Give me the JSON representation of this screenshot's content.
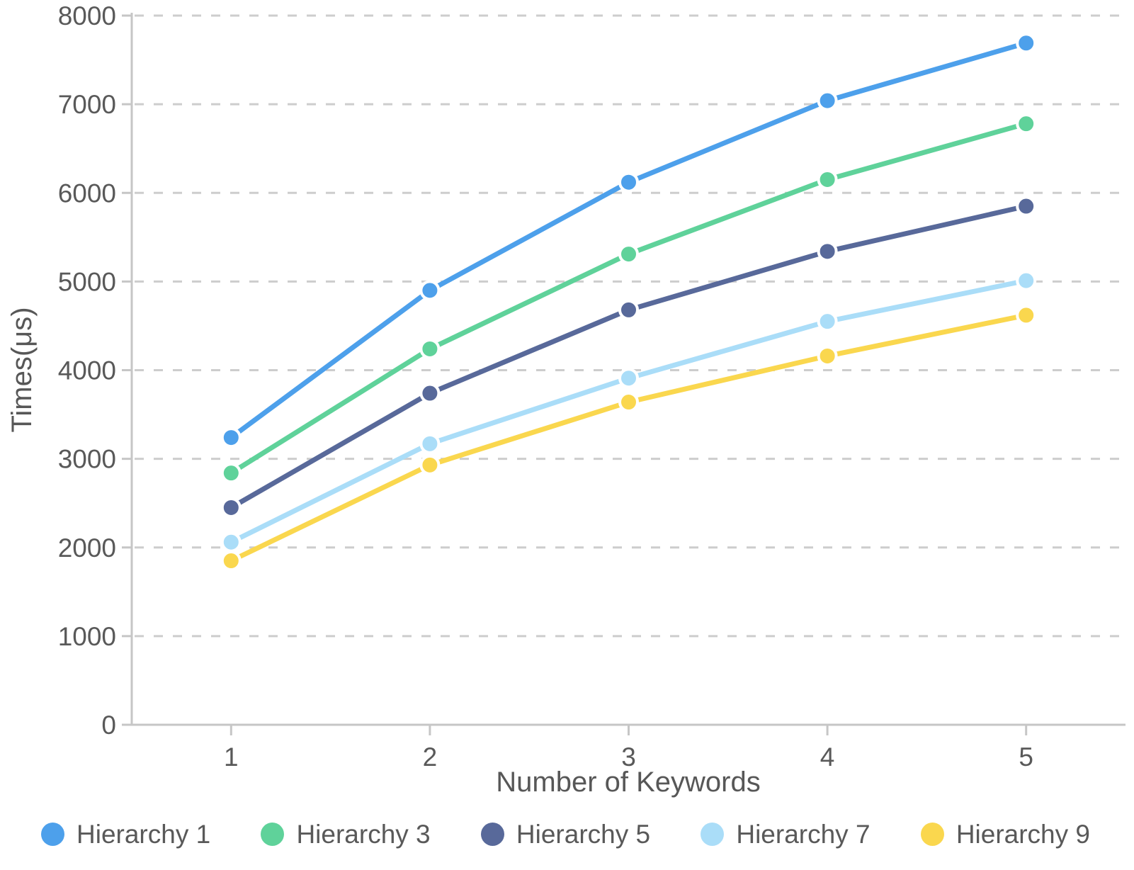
{
  "colors": {
    "background": "#ffffff",
    "axis_line": "#c6c6c6",
    "gridline": "#cdcdcd",
    "tick_text": "#595959",
    "axis_title_text": "#575757",
    "point_halo": "#ffffff"
  },
  "chart_data": {
    "type": "line",
    "title": "",
    "xlabel": "Number of Keywords",
    "ylabel": "Times(μs)",
    "categories": [
      "1",
      "2",
      "3",
      "4",
      "5"
    ],
    "yticks": [
      0,
      1000,
      2000,
      3000,
      4000,
      5000,
      6000,
      7000,
      8000
    ],
    "ylim": [
      0,
      8000
    ],
    "grid": "horizontal-dashed",
    "legend_position": "bottom",
    "series": [
      {
        "name": "Hierarchy 1",
        "color": "#4da0eb",
        "values": [
          3240,
          4900,
          6120,
          7040,
          7690
        ]
      },
      {
        "name": "Hierarchy 3",
        "color": "#5fd29a",
        "values": [
          2840,
          4240,
          5310,
          6150,
          6780
        ]
      },
      {
        "name": "Hierarchy 5",
        "color": "#58699a",
        "values": [
          2450,
          3740,
          4680,
          5340,
          5850
        ]
      },
      {
        "name": "Hierarchy 7",
        "color": "#aaddf8",
        "values": [
          2060,
          3170,
          3910,
          4550,
          5010
        ]
      },
      {
        "name": "Hierarchy 9",
        "color": "#fad74e",
        "values": [
          1850,
          2930,
          3640,
          4160,
          4620
        ]
      }
    ]
  }
}
